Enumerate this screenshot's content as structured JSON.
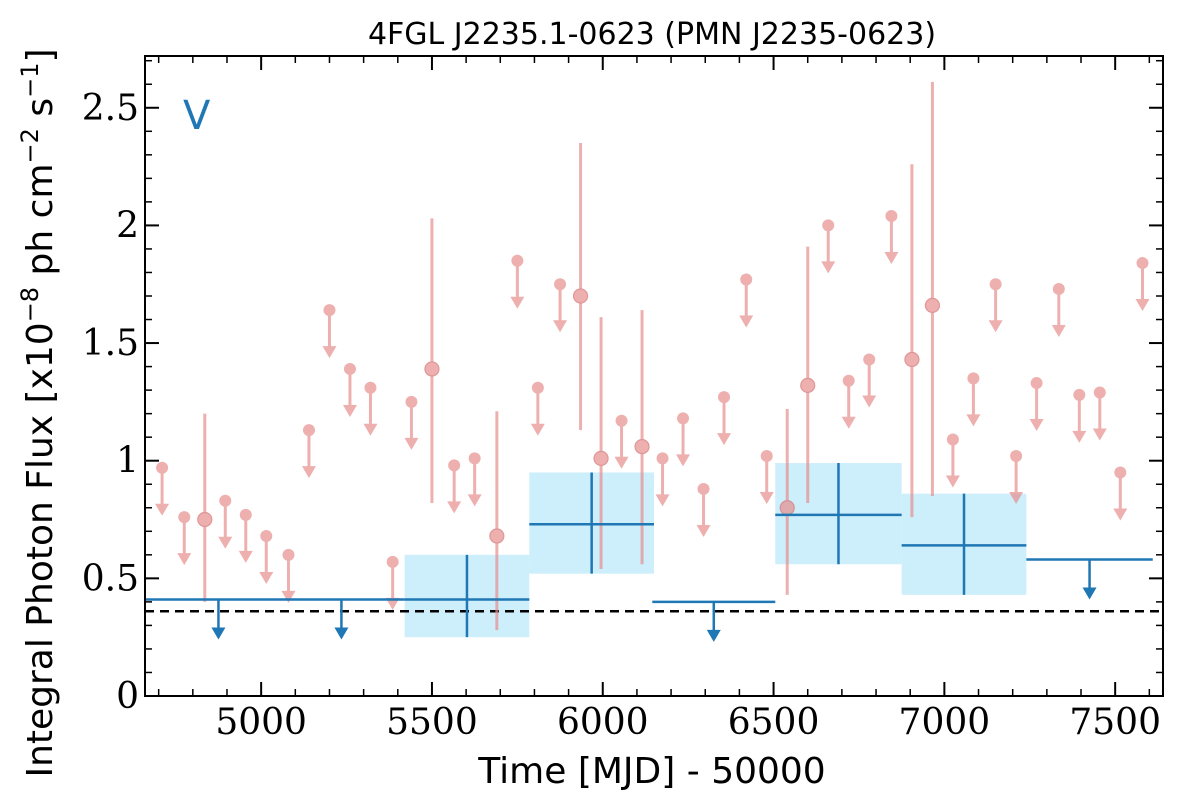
{
  "chart_data": {
    "type": "scatter",
    "title": "4FGL J2235.1-0623 (PMN J2235-0623)",
    "xlabel": "Time [MJD] - 50000",
    "ylabel": "Integral Photon Flux [x10",
    "ylabel_exp1": "−8",
    "ylabel_mid": " ph cm",
    "ylabel_exp2": "−2",
    "ylabel_mid2": " s",
    "ylabel_exp3": "−1",
    "ylabel_end": "]",
    "band_label": "V",
    "xlim": [
      4660,
      7640
    ],
    "ylim": [
      0,
      2.72
    ],
    "x_ticks": [
      5000,
      5500,
      6000,
      6500,
      7000,
      7500
    ],
    "x_tick_labels": [
      "5000",
      "5500",
      "6000",
      "6500",
      "7000",
      "7500"
    ],
    "y_ticks": [
      0,
      0.5,
      1,
      1.5,
      2,
      2.5
    ],
    "y_tick_labels": [
      "0",
      "0.5",
      "1",
      "1.5",
      "2",
      "2.5"
    ],
    "baseline": 0.36,
    "colors": {
      "fine": "#e88e8e",
      "coarse": "#1f77b4",
      "coarse_band": "#cdeefb",
      "baseline": "#000000"
    },
    "series": [
      {
        "kind": "fine_upper_limits",
        "points": [
          {
            "x": 4710,
            "y": 0.97
          },
          {
            "x": 4775,
            "y": 0.76
          },
          {
            "x": 4895,
            "y": 0.83
          },
          {
            "x": 4955,
            "y": 0.77
          },
          {
            "x": 5015,
            "y": 0.68
          },
          {
            "x": 5080,
            "y": 0.6
          },
          {
            "x": 5140,
            "y": 1.13
          },
          {
            "x": 5200,
            "y": 1.64
          },
          {
            "x": 5260,
            "y": 1.39
          },
          {
            "x": 5320,
            "y": 1.31
          },
          {
            "x": 5385,
            "y": 0.57
          },
          {
            "x": 5440,
            "y": 1.25
          },
          {
            "x": 5565,
            "y": 0.98
          },
          {
            "x": 5625,
            "y": 1.01
          },
          {
            "x": 5750,
            "y": 1.85
          },
          {
            "x": 5810,
            "y": 1.31
          },
          {
            "x": 5875,
            "y": 1.75
          },
          {
            "x": 6055,
            "y": 1.17
          },
          {
            "x": 6175,
            "y": 1.01
          },
          {
            "x": 6235,
            "y": 1.18
          },
          {
            "x": 6295,
            "y": 0.88
          },
          {
            "x": 6355,
            "y": 1.27
          },
          {
            "x": 6420,
            "y": 1.77
          },
          {
            "x": 6480,
            "y": 1.02
          },
          {
            "x": 6660,
            "y": 2.0
          },
          {
            "x": 6720,
            "y": 1.34
          },
          {
            "x": 6780,
            "y": 1.43
          },
          {
            "x": 6845,
            "y": 2.04
          },
          {
            "x": 7025,
            "y": 1.09
          },
          {
            "x": 7085,
            "y": 1.35
          },
          {
            "x": 7150,
            "y": 1.75
          },
          {
            "x": 7210,
            "y": 1.02
          },
          {
            "x": 7270,
            "y": 1.33
          },
          {
            "x": 7335,
            "y": 1.73
          },
          {
            "x": 7395,
            "y": 1.28
          },
          {
            "x": 7455,
            "y": 1.29
          },
          {
            "x": 7515,
            "y": 0.95
          },
          {
            "x": 7580,
            "y": 1.84
          }
        ]
      },
      {
        "kind": "fine_detections",
        "points": [
          {
            "x": 4835,
            "y": 0.75,
            "ylo": 0.4,
            "yhi": 1.2
          },
          {
            "x": 5500,
            "y": 1.39,
            "ylo": 0.82,
            "yhi": 2.03
          },
          {
            "x": 5690,
            "y": 0.68,
            "ylo": 0.28,
            "yhi": 1.21
          },
          {
            "x": 5935,
            "y": 1.7,
            "ylo": 1.13,
            "yhi": 2.35
          },
          {
            "x": 5995,
            "y": 1.01,
            "ylo": 0.54,
            "yhi": 1.61
          },
          {
            "x": 6115,
            "y": 1.06,
            "ylo": 0.56,
            "yhi": 1.64
          },
          {
            "x": 6540,
            "y": 0.8,
            "ylo": 0.43,
            "yhi": 1.22
          },
          {
            "x": 6600,
            "y": 1.32,
            "ylo": 0.82,
            "yhi": 1.91
          },
          {
            "x": 6905,
            "y": 1.43,
            "ylo": 0.76,
            "yhi": 2.26
          },
          {
            "x": 6965,
            "y": 1.66,
            "ylo": 0.85,
            "yhi": 2.61
          }
        ]
      },
      {
        "kind": "coarse_upper_limits",
        "points": [
          {
            "x0": 4660,
            "x1": 5420,
            "y": 0.41,
            "arrows": [
              4875,
              5235
            ]
          },
          {
            "x0": 6145,
            "x1": 6505,
            "y": 0.4,
            "arrows": [
              6325
            ]
          },
          {
            "x0": 7240,
            "x1": 7610,
            "y": 0.58,
            "arrows": [
              7425
            ]
          }
        ]
      },
      {
        "kind": "coarse_detections",
        "points": [
          {
            "x0": 5420,
            "x1": 5785,
            "y": 0.41,
            "ylo": 0.25,
            "yhi": 0.6
          },
          {
            "x0": 5785,
            "x1": 6150,
            "y": 0.73,
            "ylo": 0.52,
            "yhi": 0.95
          },
          {
            "x0": 6505,
            "x1": 6875,
            "y": 0.77,
            "ylo": 0.56,
            "yhi": 0.99
          },
          {
            "x0": 6875,
            "x1": 7240,
            "y": 0.64,
            "ylo": 0.43,
            "yhi": 0.86
          }
        ]
      }
    ]
  }
}
